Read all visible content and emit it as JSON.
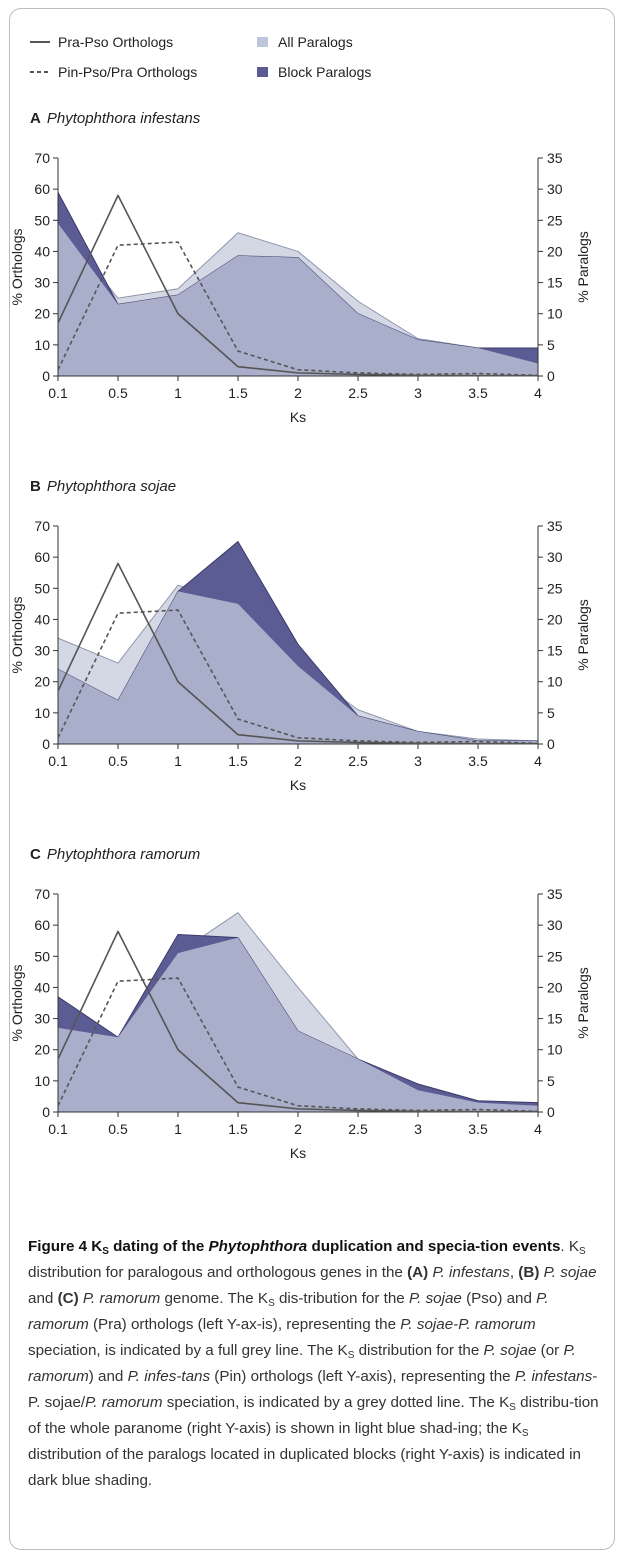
{
  "legend": {
    "items": [
      {
        "key": "pra_pso",
        "label": "Pra-Pso Orthologs",
        "style": "solid-line"
      },
      {
        "key": "pin_pso",
        "label": "Pin-Pso/Pra Orthologs",
        "style": "dashed-line"
      },
      {
        "key": "all",
        "label": "All Paralogs",
        "style": "light-square"
      },
      {
        "key": "block",
        "label": "Block Paralogs",
        "style": "dark-square"
      }
    ]
  },
  "colors": {
    "orthologs": "#555555",
    "all_paralogs": "#a9aecb",
    "all_paralogs_light": "#d4d8e4",
    "block_paralogs": "#5c5c94",
    "legend_light": "#bfc6dc",
    "legend_dark": "#5b5b93"
  },
  "chart_data": [
    {
      "panel_letter": "A",
      "panel_title": "Phytophthora infestans",
      "type": "area",
      "x": [
        "0.1",
        "0.5",
        "1",
        "1.5",
        "2",
        "2.5",
        "3",
        "3.5",
        "4"
      ],
      "xlabel": "Ks",
      "ylabel_left": "% Orthologs",
      "ylabel_right": "% Paralogs",
      "ylim_left": [
        0,
        70
      ],
      "ylim_right": [
        0,
        35
      ],
      "left_ticks": [
        "0",
        "10",
        "20",
        "30",
        "40",
        "50",
        "60",
        "70"
      ],
      "right_ticks": [
        "0",
        "5",
        "10",
        "15",
        "20",
        "25",
        "30",
        "35"
      ],
      "series": [
        {
          "key": "all",
          "axis": "right",
          "values": [
            24.5,
            12.5,
            14.0,
            23.0,
            20.0,
            12.0,
            6.0,
            4.5,
            2.0
          ]
        },
        {
          "key": "block",
          "axis": "right",
          "values": [
            29.5,
            11.5,
            13.0,
            19.3,
            19.0,
            10.0,
            5.8,
            4.5,
            4.5
          ]
        },
        {
          "key": "pra_pso",
          "axis": "left",
          "values": [
            17.0,
            58.0,
            20.0,
            3.0,
            1.0,
            0.5,
            0.2,
            0.1,
            0.1
          ]
        },
        {
          "key": "pin_pso",
          "axis": "left",
          "values": [
            2.0,
            42.0,
            43.0,
            8.0,
            2.0,
            1.0,
            0.5,
            0.8,
            0.2
          ]
        }
      ]
    },
    {
      "panel_letter": "B",
      "panel_title": "Phytophthora sojae",
      "type": "area",
      "x": [
        "0.1",
        "0.5",
        "1",
        "1.5",
        "2",
        "2.5",
        "3",
        "3.5",
        "4"
      ],
      "xlabel": "Ks",
      "ylabel_left": "% Orthologs",
      "ylabel_right": "% Paralogs",
      "ylim_left": [
        0,
        70
      ],
      "ylim_right": [
        0,
        35
      ],
      "left_ticks": [
        "0",
        "10",
        "20",
        "30",
        "40",
        "50",
        "60",
        "70"
      ],
      "right_ticks": [
        "0",
        "5",
        "10",
        "15",
        "20",
        "25",
        "30",
        "35"
      ],
      "series": [
        {
          "key": "all",
          "axis": "right",
          "values": [
            17.0,
            13.0,
            25.5,
            22.5,
            12.5,
            5.5,
            2.0,
            0.8,
            0.5
          ]
        },
        {
          "key": "block",
          "axis": "right",
          "values": [
            12.0,
            7.0,
            24.5,
            32.5,
            16.0,
            4.5,
            2.0,
            0.5,
            0.5
          ]
        },
        {
          "key": "pra_pso",
          "axis": "left",
          "values": [
            17.0,
            58.0,
            20.0,
            3.0,
            1.0,
            0.5,
            0.2,
            0.1,
            0.1
          ]
        },
        {
          "key": "pin_pso",
          "axis": "left",
          "values": [
            2.0,
            42.0,
            43.0,
            8.0,
            2.0,
            1.0,
            0.5,
            0.8,
            0.2
          ]
        }
      ]
    },
    {
      "panel_letter": "C",
      "panel_title": "Phytophthora ramorum",
      "type": "area",
      "x": [
        "0.1",
        "0.5",
        "1",
        "1.5",
        "2",
        "2.5",
        "3",
        "3.5",
        "4"
      ],
      "xlabel": "Ks",
      "ylabel_left": "% Orthologs",
      "ylabel_right": "% Paralogs",
      "ylim_left": [
        0,
        70
      ],
      "ylim_right": [
        0,
        35
      ],
      "left_ticks": [
        "0",
        "10",
        "20",
        "30",
        "40",
        "50",
        "60",
        "70"
      ],
      "right_ticks": [
        "0",
        "5",
        "10",
        "15",
        "20",
        "25",
        "30",
        "35"
      ],
      "series": [
        {
          "key": "all",
          "axis": "right",
          "values": [
            13.5,
            12.0,
            25.5,
            32.0,
            20.0,
            8.5,
            3.5,
            1.5,
            1.0
          ]
        },
        {
          "key": "block",
          "axis": "right",
          "values": [
            18.5,
            12.0,
            28.5,
            28.0,
            13.0,
            8.5,
            4.5,
            1.8,
            1.5
          ]
        },
        {
          "key": "pra_pso",
          "axis": "left",
          "values": [
            17.0,
            58.0,
            20.0,
            3.0,
            1.0,
            0.5,
            0.2,
            0.1,
            0.1
          ]
        },
        {
          "key": "pin_pso",
          "axis": "left",
          "values": [
            2.0,
            42.0,
            43.0,
            8.0,
            2.0,
            1.0,
            0.5,
            0.8,
            0.2
          ]
        }
      ]
    }
  ],
  "caption": {
    "label": "Figure 4 K",
    "label_sub": "S",
    "label_rest": " dating of the ",
    "label_italic": "Phytophthora",
    "label_end": " duplication and specia-tion events",
    "body_html": ". K<sub>S</sub> distribution for paralogous and orthologous genes in the <b>(A)</b> <i>P. infestans</i>, <b>(B)</b> <i>P. sojae</i> and <b>(C)</b> <i>P. ramorum</i> genome. The K<sub>S</sub> dis-tribution for the <i>P. sojae</i> (Pso) and <i>P. ramorum</i> (Pra) orthologs (left Y-ax-is), representing the <i>P. sojae-P. ramorum</i> speciation, is indicated by a full grey line. The K<sub>S</sub> distribution for the <i>P. sojae</i> (or <i>P. ramorum</i>) and <i>P. infes-tans</i> (Pin) orthologs (left Y-axis), representing the <i>P. infestans</i>-P. sojae/<i>P. ramorum</i> speciation, is indicated by a grey dotted line. The K<sub>S</sub> distribu-tion of the whole paranome (right Y-axis) is shown in light blue shad-ing; the K<sub>S</sub> distribution of the paralogs located in duplicated blocks (right Y-axis) is indicated in dark blue shading."
  }
}
